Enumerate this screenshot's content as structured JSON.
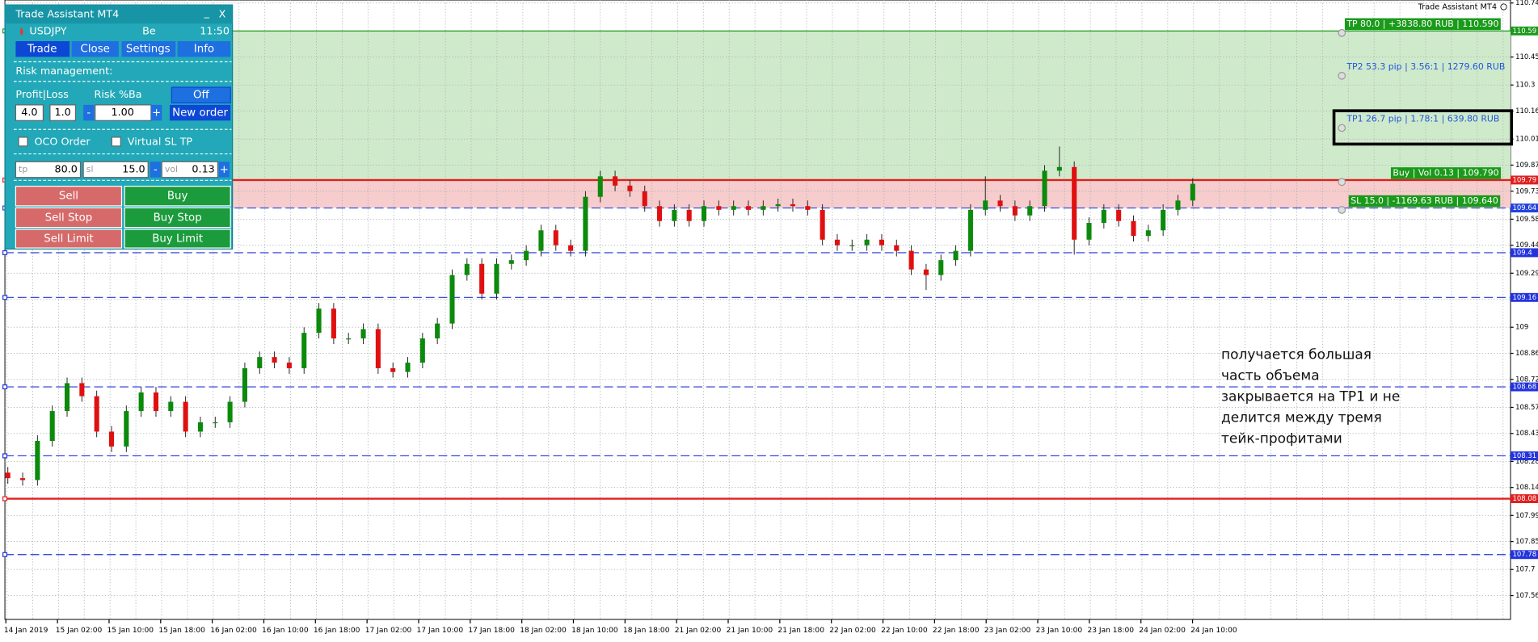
{
  "panel": {
    "title": "Trade Assistant MT4",
    "minimize": "_",
    "close": "X",
    "symbol": "USDJPY",
    "mode": "Be",
    "time": "11:50",
    "tabs": [
      "Trade",
      "Close",
      "Settings",
      "Info"
    ],
    "risk_heading": "Risk management:",
    "profit_loss": "Profit|Loss",
    "risk_label": "Risk %Ba",
    "risk_toggle": "Off",
    "profit": "4.0",
    "loss": "1.0",
    "minus": "-",
    "risk": "1.00",
    "plus": "+",
    "new_order": "New order",
    "oco": "OCO Order",
    "virtual": "Virtual SL TP",
    "tp_label": "tp",
    "tp": "80.0",
    "sl_label": "sl",
    "sl": "15.0",
    "vol_label": "vol",
    "vol": "0.13",
    "buttons": [
      "Sell",
      "Buy",
      "Sell Stop",
      "Buy Stop",
      "Sell Limit",
      "Buy Limit"
    ]
  },
  "chart_data": {
    "type": "candlestick",
    "watermark": "Trade Assistant MT4",
    "up_color": "#0b8a0b",
    "down_color": "#e01010",
    "ylim": [
      107.432,
      110.756
    ],
    "yticks": [
      110.74,
      110.59,
      110.45,
      110.3,
      110.16,
      110.01,
      109.87,
      109.73,
      109.58,
      109.44,
      109.29,
      109.15,
      109.0,
      108.86,
      108.72,
      108.57,
      108.43,
      108.28,
      108.14,
      107.99,
      107.85,
      107.7,
      107.56
    ],
    "time_labels": [
      "14 Jan 2019",
      "15 Jan 02:00",
      "15 Jan 10:00",
      "15 Jan 18:00",
      "16 Jan 02:00",
      "16 Jan 10:00",
      "16 Jan 18:00",
      "17 Jan 02:00",
      "17 Jan 10:00",
      "17 Jan 18:00",
      "18 Jan 02:00",
      "18 Jan 10:00",
      "18 Jan 18:00",
      "21 Jan 02:00",
      "21 Jan 10:00",
      "21 Jan 18:00",
      "22 Jan 02:00",
      "22 Jan 10:00",
      "22 Jan 18:00",
      "23 Jan 02:00",
      "23 Jan 10:00",
      "23 Jan 18:00",
      "24 Jan 02:00",
      "24 Jan 10:00"
    ],
    "candles": [
      [
        108.22,
        108.25,
        108.16,
        108.19
      ],
      [
        108.19,
        108.22,
        108.15,
        108.18
      ],
      [
        108.18,
        108.42,
        108.15,
        108.39
      ],
      [
        108.39,
        108.58,
        108.36,
        108.55
      ],
      [
        108.55,
        108.73,
        108.52,
        108.7
      ],
      [
        108.7,
        108.73,
        108.6,
        108.63
      ],
      [
        108.63,
        108.66,
        108.41,
        108.44
      ],
      [
        108.44,
        108.47,
        108.33,
        108.36
      ],
      [
        108.36,
        108.58,
        108.33,
        108.55
      ],
      [
        108.55,
        108.68,
        108.52,
        108.65
      ],
      [
        108.65,
        108.68,
        108.52,
        108.55
      ],
      [
        108.55,
        108.63,
        108.52,
        108.6
      ],
      [
        108.6,
        108.63,
        108.41,
        108.44
      ],
      [
        108.44,
        108.52,
        108.41,
        108.49
      ],
      [
        108.49,
        108.52,
        108.46,
        108.49
      ],
      [
        108.49,
        108.63,
        108.46,
        108.6
      ],
      [
        108.6,
        108.81,
        108.57,
        108.78
      ],
      [
        108.78,
        108.87,
        108.75,
        108.84
      ],
      [
        108.84,
        108.87,
        108.78,
        108.81
      ],
      [
        108.81,
        108.84,
        108.75,
        108.78
      ],
      [
        108.78,
        109.0,
        108.75,
        108.97
      ],
      [
        108.97,
        109.13,
        108.94,
        109.1
      ],
      [
        109.1,
        109.13,
        108.91,
        108.94
      ],
      [
        108.94,
        108.97,
        108.91,
        108.94
      ],
      [
        108.94,
        109.02,
        108.91,
        108.99
      ],
      [
        108.99,
        109.02,
        108.75,
        108.78
      ],
      [
        108.78,
        108.81,
        108.73,
        108.76
      ],
      [
        108.76,
        108.84,
        108.73,
        108.81
      ],
      [
        108.81,
        108.97,
        108.78,
        108.94
      ],
      [
        108.94,
        109.05,
        108.91,
        109.02
      ],
      [
        109.02,
        109.31,
        108.99,
        109.28
      ],
      [
        109.28,
        109.37,
        109.25,
        109.34
      ],
      [
        109.34,
        109.37,
        109.15,
        109.18
      ],
      [
        109.18,
        109.37,
        109.15,
        109.34
      ],
      [
        109.34,
        109.39,
        109.31,
        109.36
      ],
      [
        109.36,
        109.44,
        109.33,
        109.41
      ],
      [
        109.41,
        109.55,
        109.38,
        109.52
      ],
      [
        109.52,
        109.55,
        109.41,
        109.44
      ],
      [
        109.44,
        109.47,
        109.38,
        109.41
      ],
      [
        109.41,
        109.73,
        109.38,
        109.7
      ],
      [
        109.7,
        109.84,
        109.67,
        109.81
      ],
      [
        109.81,
        109.84,
        109.73,
        109.76
      ],
      [
        109.76,
        109.79,
        109.7,
        109.73
      ],
      [
        109.73,
        109.76,
        109.62,
        109.65
      ],
      [
        109.65,
        109.68,
        109.54,
        109.57
      ],
      [
        109.57,
        109.66,
        109.54,
        109.63
      ],
      [
        109.63,
        109.66,
        109.54,
        109.57
      ],
      [
        109.57,
        109.68,
        109.54,
        109.65
      ],
      [
        109.65,
        109.68,
        109.6,
        109.63
      ],
      [
        109.63,
        109.68,
        109.6,
        109.65
      ],
      [
        109.65,
        109.68,
        109.6,
        109.63
      ],
      [
        109.63,
        109.68,
        109.6,
        109.65
      ],
      [
        109.65,
        109.69,
        109.62,
        109.66
      ],
      [
        109.66,
        109.69,
        109.62,
        109.65
      ],
      [
        109.65,
        109.68,
        109.6,
        109.63
      ],
      [
        109.63,
        109.66,
        109.44,
        109.47
      ],
      [
        109.47,
        109.5,
        109.41,
        109.44
      ],
      [
        109.44,
        109.47,
        109.41,
        109.44
      ],
      [
        109.44,
        109.5,
        109.41,
        109.47
      ],
      [
        109.47,
        109.5,
        109.41,
        109.44
      ],
      [
        109.44,
        109.47,
        109.38,
        109.41
      ],
      [
        109.41,
        109.44,
        109.28,
        109.31
      ],
      [
        109.31,
        109.34,
        109.2,
        109.28
      ],
      [
        109.28,
        109.39,
        109.25,
        109.36
      ],
      [
        109.36,
        109.44,
        109.33,
        109.41
      ],
      [
        109.41,
        109.66,
        109.38,
        109.63
      ],
      [
        109.63,
        109.81,
        109.6,
        109.68
      ],
      [
        109.68,
        109.71,
        109.62,
        109.65
      ],
      [
        109.65,
        109.68,
        109.57,
        109.6
      ],
      [
        109.6,
        109.68,
        109.57,
        109.65
      ],
      [
        109.65,
        109.87,
        109.62,
        109.84
      ],
      [
        109.84,
        109.97,
        109.81,
        109.86
      ],
      [
        109.86,
        109.89,
        109.39,
        109.47
      ],
      [
        109.47,
        109.59,
        109.44,
        109.56
      ],
      [
        109.56,
        109.66,
        109.53,
        109.63
      ],
      [
        109.63,
        109.66,
        109.54,
        109.57
      ],
      [
        109.57,
        109.6,
        109.46,
        109.49
      ],
      [
        109.49,
        109.55,
        109.46,
        109.52
      ],
      [
        109.52,
        109.66,
        109.49,
        109.63
      ],
      [
        109.63,
        109.71,
        109.6,
        109.68
      ],
      [
        109.68,
        109.8,
        109.65,
        109.77
      ]
    ],
    "levels": [
      {
        "price": 110.59,
        "label": "TP 80.0 | +3838.80 RUB | 110.590",
        "color": "#1a9a1a",
        "style": "solid",
        "label_bg": "#1a9a1a"
      },
      {
        "price": 110.36,
        "label": "TP2 53.3 pip | 3.56:1 | 1279.60 RUB",
        "color": "#2255dd",
        "style": "none"
      },
      {
        "price": 110.08,
        "label": "TP1 26.7 pip | 1.78:1 | 639.80 RUB",
        "color": "#2255dd",
        "style": "none"
      },
      {
        "price": 109.79,
        "label": "Buy | Vol 0.13 | 109.790",
        "color": "#e02020",
        "style": "thick",
        "label_bg": "#1a9a1a"
      },
      {
        "price": 109.64,
        "label": "SL 15.0 | -1169.63 RUB | 109.640",
        "color": "#2244dd",
        "style": "dashed",
        "label_bg": "#1a9a1a"
      },
      {
        "price": 109.4,
        "color": "#2233dd",
        "style": "dashed"
      },
      {
        "price": 109.16,
        "color": "#2233dd",
        "style": "dashed"
      },
      {
        "price": 108.68,
        "color": "#2233dd",
        "style": "dashed"
      },
      {
        "price": 108.31,
        "color": "#2233dd",
        "style": "dashed"
      },
      {
        "price": 108.08,
        "color": "#e02020",
        "style": "thick"
      },
      {
        "price": 107.78,
        "color": "#2233dd",
        "style": "dashed"
      }
    ],
    "annotation": [
      "получается большая",
      "часть объема",
      "закрывается на TP1 и не",
      "делится между тремя",
      "тейк-профитами"
    ]
  }
}
